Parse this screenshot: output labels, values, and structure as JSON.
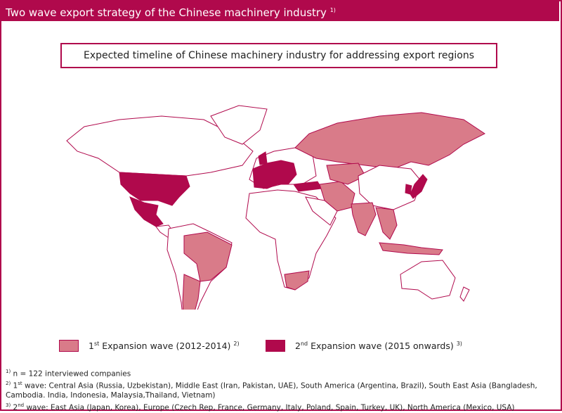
{
  "header": {
    "title": "Two wave export strategy of the Chinese machinery industry",
    "title_note": "1)"
  },
  "map": {
    "subtitle": "Expected timeline of Chinese machinery industry for addressing export regions",
    "legend": [
      {
        "num": "1",
        "sup": "st",
        "label": " Expansion wave (2012-2014) ",
        "note": "2)",
        "color": "#d97b89"
      },
      {
        "num": "2",
        "sup": "nd",
        "label": " Expansion wave (2015 onwards) ",
        "note": "3)",
        "color": "#b0094c"
      }
    ]
  },
  "footnotes": [
    {
      "marker": "1)",
      "text": " n = 122 interviewed companies"
    },
    {
      "marker": "2)",
      "num": " 1",
      "sup": "st",
      "text": " wave: Central Asia (Russia, Uzbekistan), Middle East (Iran, Pakistan, UAE), South America (Argentina, Brazil), South East Asia (Bangladesh, Cambodia. India, Indonesia, Malaysia,Thailand, Vietnam)"
    },
    {
      "marker": "3)",
      "num": " 2",
      "sup": "nd",
      "text": " wave: East Asia (Japan, Korea), Europe (Czech Rep, France, Germany, Italy, Poland, Spain, Turkey, UK), North America (Mexico, USA)"
    }
  ]
}
